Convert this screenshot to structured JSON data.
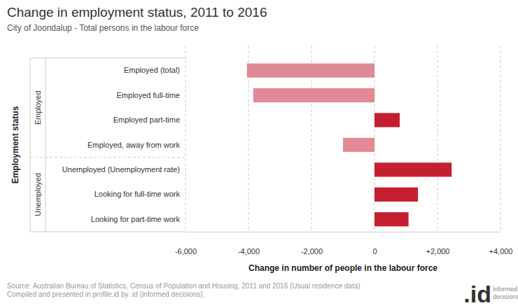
{
  "chart_data": {
    "type": "bar",
    "orientation": "horizontal",
    "title": "Change in employment status, 2011 to 2016",
    "subtitle": "City of Joondalup - Total persons in the labour force",
    "xlabel": "Change in number of people in the labour force",
    "ylabel": "Employment status",
    "categories": [
      "Employed (total)",
      "Employed full-time",
      "Employed part-time",
      "Employed, away from work",
      "Unemployed (Unemployment rate)",
      "Looking for full-time work",
      "Looking for part-time work"
    ],
    "category_groups": [
      "Employed",
      "Employed",
      "Employed",
      "Employed",
      "Unemployed",
      "Unemployed",
      "Unemployed"
    ],
    "values": [
      -4050,
      -3850,
      800,
      -1000,
      2450,
      1380,
      1080
    ],
    "colors": [
      "#e08a98",
      "#e08a98",
      "#c41e30",
      "#e08a98",
      "#c41e30",
      "#c41e30",
      "#c41e30"
    ],
    "xlim": [
      -6000,
      4000
    ],
    "xticks": [
      {
        "value": -6000,
        "label": "-6,000"
      },
      {
        "value": -4000,
        "label": "-4,000"
      },
      {
        "value": -2000,
        "label": "-2,000"
      },
      0,
      {
        "value": 2000,
        "label": "+2,000"
      },
      {
        "value": 4000,
        "label": "+4,000"
      }
    ],
    "grid": true,
    "source": [
      "Source: Australian Bureau of Statistics, Census of Population and Housing, 2011 and 2016 (Usual residence data)",
      "Compiled and presented in profile.id by .id (informed decisions)."
    ],
    "logo": [
      ".id",
      "informed",
      "decisions"
    ]
  }
}
